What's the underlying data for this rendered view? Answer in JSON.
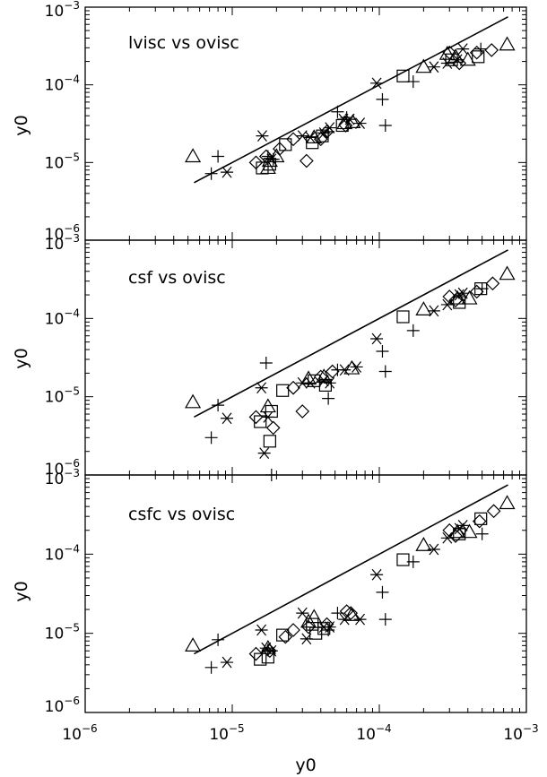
{
  "chart_data": [
    {
      "type": "scatter",
      "title": "lvisc vs ovisc",
      "xlabel": "",
      "ylabel": "y0",
      "xlim": [
        1e-06,
        0.001
      ],
      "ylim": [
        1e-06,
        0.001
      ],
      "log_x": true,
      "log_y": true,
      "grid": false,
      "line": {
        "x": [
          5.5e-06,
          0.00075
        ],
        "y": [
          5.5e-06,
          0.00075
        ]
      },
      "series": [
        {
          "marker": "triangle",
          "points": [
            [
              5.4e-06,
              1.2e-05
            ],
            [
              1.75e-05,
              8.5e-06
            ],
            [
              1.8e-05,
              1.05e-05
            ],
            [
              2e-05,
              1.2e-05
            ],
            [
              3.6e-05,
              2.1e-05
            ],
            [
              5.8e-05,
              3.2e-05
            ],
            [
              6.6e-05,
              3.3e-05
            ],
            [
              0.0002,
              0.00017
            ],
            [
              0.00029,
              0.00025
            ],
            [
              0.00033,
              0.00023
            ],
            [
              0.0004,
              0.00021
            ],
            [
              0.00074,
              0.00033
            ]
          ]
        },
        {
          "marker": "diamond",
          "points": [
            [
              1.45e-05,
              1e-05
            ],
            [
              1.7e-05,
              1.2e-05
            ],
            [
              2.1e-05,
              1.5e-05
            ],
            [
              2.6e-05,
              2e-05
            ],
            [
              3.2e-05,
              1.05e-05
            ],
            [
              4e-05,
              2e-05
            ],
            [
              4.4e-05,
              2.5e-05
            ],
            [
              5.9e-05,
              3e-05
            ],
            [
              0.0003,
              0.00026
            ],
            [
              0.00035,
              0.00019
            ],
            [
              0.00046,
              0.00026
            ],
            [
              0.00058,
              0.00028
            ]
          ]
        },
        {
          "marker": "square",
          "points": [
            [
              1.6e-05,
              8.5e-06
            ],
            [
              1.8e-05,
              9.5e-06
            ],
            [
              2.3e-05,
              1.7e-05
            ],
            [
              3.5e-05,
              1.8e-05
            ],
            [
              4.1e-05,
              2.2e-05
            ],
            [
              5.6e-05,
              3e-05
            ],
            [
              0.000145,
              0.00013
            ],
            [
              0.00031,
              0.00021
            ],
            [
              0.00047,
              0.00023
            ]
          ]
        },
        {
          "marker": "asterisk",
          "points": [
            [
              9.2e-06,
              7.5e-06
            ],
            [
              1.6e-05,
              2.2e-05
            ],
            [
              1.85e-05,
              1.1e-05
            ],
            [
              3e-05,
              2.2e-05
            ],
            [
              3.4e-05,
              2.1e-05
            ],
            [
              4.2e-05,
              2.4e-05
            ],
            [
              4.6e-05,
              2.8e-05
            ],
            [
              5.7e-05,
              3.6e-05
            ],
            [
              6.3e-05,
              3.6e-05
            ],
            [
              7.4e-05,
              3.2e-05
            ],
            [
              9.6e-05,
              0.000105
            ],
            [
              0.000235,
              0.00017
            ],
            [
              0.00029,
              0.00019
            ],
            [
              0.00034,
              0.00021
            ],
            [
              0.00037,
              0.00029
            ]
          ]
        },
        {
          "marker": "plus",
          "points": [
            [
              7.2e-06,
              7.2e-06
            ],
            [
              8e-06,
              1.2e-05
            ],
            [
              1.75e-05,
              1.2e-05
            ],
            [
              1.9e-05,
              1.1e-05
            ],
            [
              4.5e-05,
              2.5e-05
            ],
            [
              5.2e-05,
              4.5e-05
            ],
            [
              6e-05,
              3.8e-05
            ],
            [
              0.000105,
              6.5e-05
            ],
            [
              0.00011,
              3e-05
            ],
            [
              0.00017,
              0.00011
            ],
            [
              0.00049,
              0.00029
            ]
          ]
        }
      ]
    },
    {
      "type": "scatter",
      "title": "csf vs ovisc",
      "xlabel": "",
      "ylabel": "y0",
      "xlim": [
        1e-06,
        0.001
      ],
      "ylim": [
        1e-06,
        0.001
      ],
      "log_x": true,
      "log_y": true,
      "grid": false,
      "line": {
        "x": [
          5.5e-06,
          0.00075
        ],
        "y": [
          5.5e-06,
          0.00075
        ]
      },
      "series": [
        {
          "marker": "triangle",
          "points": [
            [
              5.4e-06,
              8.5e-06
            ],
            [
              1.75e-05,
              7.5e-06
            ],
            [
              3.3e-05,
              1.7e-05
            ],
            [
              4.2e-05,
              1.8e-05
            ],
            [
              6.5e-05,
              2.3e-05
            ],
            [
              0.0002,
              0.00013
            ],
            [
              0.00034,
              0.00018
            ],
            [
              0.00041,
              0.00018
            ],
            [
              0.00074,
              0.00037
            ]
          ]
        },
        {
          "marker": "diamond",
          "points": [
            [
              1.45e-05,
              5.5e-06
            ],
            [
              1.9e-05,
              4e-06
            ],
            [
              2.6e-05,
              1.3e-05
            ],
            [
              3e-05,
              6.5e-06
            ],
            [
              4e-05,
              1.8e-05
            ],
            [
              4.8e-05,
              2.1e-05
            ],
            [
              0.0003,
              0.00019
            ],
            [
              0.00033,
              0.00017
            ],
            [
              0.00046,
              0.00022
            ],
            [
              0.00059,
              0.00028
            ]
          ]
        },
        {
          "marker": "square",
          "points": [
            [
              1.55e-05,
              4.8e-06
            ],
            [
              1.8e-05,
              2.7e-06
            ],
            [
              1.85e-05,
              6.5e-06
            ],
            [
              2.2e-05,
              1.2e-05
            ],
            [
              3.6e-05,
              1.6e-05
            ],
            [
              4.3e-05,
              1.4e-05
            ],
            [
              0.000145,
              0.000105
            ],
            [
              0.00035,
              0.00016
            ],
            [
              0.00049,
              0.00024
            ]
          ]
        },
        {
          "marker": "asterisk",
          "points": [
            [
              9.2e-06,
              5.3e-06
            ],
            [
              1.58e-05,
              1.3e-05
            ],
            [
              1.65e-05,
              1.9e-06
            ],
            [
              1.75e-05,
              5.5e-06
            ],
            [
              3e-05,
              1.5e-05
            ],
            [
              3.4e-05,
              1.5e-05
            ],
            [
              4.2e-05,
              1.6e-05
            ],
            [
              4.6e-05,
              1.5e-05
            ],
            [
              5.8e-05,
              2.2e-05
            ],
            [
              7e-05,
              2.4e-05
            ],
            [
              9.6e-05,
              5.5e-05
            ],
            [
              0.000235,
              0.000125
            ],
            [
              0.00029,
              0.00015
            ],
            [
              0.00035,
              0.0002
            ],
            [
              0.00037,
              0.00021
            ]
          ]
        },
        {
          "marker": "plus",
          "points": [
            [
              7.2e-06,
              3e-06
            ],
            [
              8e-06,
              7.8e-06
            ],
            [
              1.7e-05,
              2.7e-05
            ],
            [
              1.85e-05,
              1e-06
            ],
            [
              4.5e-05,
              9.5e-06
            ],
            [
              5.2e-05,
              2.2e-05
            ],
            [
              0.000105,
              3.8e-05
            ],
            [
              0.00011,
              2.1e-05
            ],
            [
              0.00017,
              7e-05
            ],
            [
              0.0005,
              0.00024
            ]
          ]
        }
      ]
    },
    {
      "type": "scatter",
      "title": "csfc vs ovisc",
      "xlabel": "y0",
      "ylabel": "y0",
      "xlim": [
        1e-06,
        0.001
      ],
      "ylim": [
        1e-06,
        0.001
      ],
      "log_x": true,
      "log_y": true,
      "grid": false,
      "line": {
        "x": [
          5.5e-06,
          0.00075
        ],
        "y": [
          5.5e-06,
          0.00075
        ]
      },
      "series": [
        {
          "marker": "triangle",
          "points": [
            [
              5.4e-06,
              7e-06
            ],
            [
              1.75e-05,
              6.5e-06
            ],
            [
              3.3e-05,
              1.4e-05
            ],
            [
              3.6e-05,
              1.6e-05
            ],
            [
              6.5e-05,
              1.7e-05
            ],
            [
              0.0002,
              0.00013
            ],
            [
              0.00034,
              0.00019
            ],
            [
              0.00041,
              0.00019
            ],
            [
              0.00074,
              0.00044
            ]
          ]
        },
        {
          "marker": "diamond",
          "points": [
            [
              1.45e-05,
              5.5e-06
            ],
            [
              1.8e-05,
              6e-06
            ],
            [
              2.3e-05,
              9e-06
            ],
            [
              2.6e-05,
              1.1e-05
            ],
            [
              3.3e-05,
              1.2e-05
            ],
            [
              4.4e-05,
              1.3e-05
            ],
            [
              6e-05,
              1.9e-05
            ],
            [
              6.4e-05,
              1.8e-05
            ],
            [
              0.0003,
              0.0002
            ],
            [
              0.00033,
              0.00017
            ],
            [
              0.00048,
              0.00026
            ],
            [
              0.0006,
              0.00035
            ]
          ]
        },
        {
          "marker": "square",
          "points": [
            [
              1.55e-05,
              4.7e-06
            ],
            [
              1.75e-05,
              5e-06
            ],
            [
              2.2e-05,
              9.5e-06
            ],
            [
              3.5e-05,
              1.3e-05
            ],
            [
              3.7e-05,
              1e-05
            ],
            [
              4.2e-05,
              1.15e-05
            ],
            [
              0.000145,
              8.5e-05
            ],
            [
              0.00035,
              0.00018
            ],
            [
              0.00049,
              0.00028
            ]
          ]
        },
        {
          "marker": "asterisk",
          "points": [
            [
              9.2e-06,
              4.3e-06
            ],
            [
              1.58e-05,
              1.1e-05
            ],
            [
              1.7e-05,
              6.5e-06
            ],
            [
              1.85e-05,
              6e-06
            ],
            [
              3e-05,
              1.8e-05
            ],
            [
              3.2e-05,
              8.5e-06
            ],
            [
              4.2e-05,
              1.2e-05
            ],
            [
              4.6e-05,
              1.2e-05
            ],
            [
              5.8e-05,
              1.5e-05
            ],
            [
              7.4e-05,
              1.5e-05
            ],
            [
              9.6e-05,
              5.5e-05
            ],
            [
              0.000235,
              0.000115
            ],
            [
              0.00029,
              0.00016
            ],
            [
              0.00035,
              0.00021
            ],
            [
              0.00037,
              0.00023
            ]
          ]
        },
        {
          "marker": "plus",
          "points": [
            [
              7.2e-06,
              3.7e-06
            ],
            [
              8e-06,
              8.3e-06
            ],
            [
              1.75e-05,
              6.2e-06
            ],
            [
              4.5e-05,
              1.1e-05
            ],
            [
              5.2e-05,
              1.8e-05
            ],
            [
              0.000105,
              3.3e-05
            ],
            [
              0.00011,
              1.5e-05
            ],
            [
              0.00017,
              8e-05
            ],
            [
              0.0005,
              0.00018
            ]
          ]
        }
      ]
    }
  ],
  "axis_ticks": {
    "x": [
      {
        "value": 1e-06,
        "base": "10",
        "exp": "−6"
      },
      {
        "value": 1e-05,
        "base": "10",
        "exp": "−5"
      },
      {
        "value": 0.0001,
        "base": "10",
        "exp": "−4"
      },
      {
        "value": 0.001,
        "base": "10",
        "exp": "−3"
      }
    ],
    "y": [
      {
        "value": 1e-06,
        "base": "10",
        "exp": "−6"
      },
      {
        "value": 1e-05,
        "base": "10",
        "exp": "−5"
      },
      {
        "value": 0.0001,
        "base": "10",
        "exp": "−4"
      },
      {
        "value": 0.001,
        "base": "10",
        "exp": "−3"
      }
    ]
  }
}
